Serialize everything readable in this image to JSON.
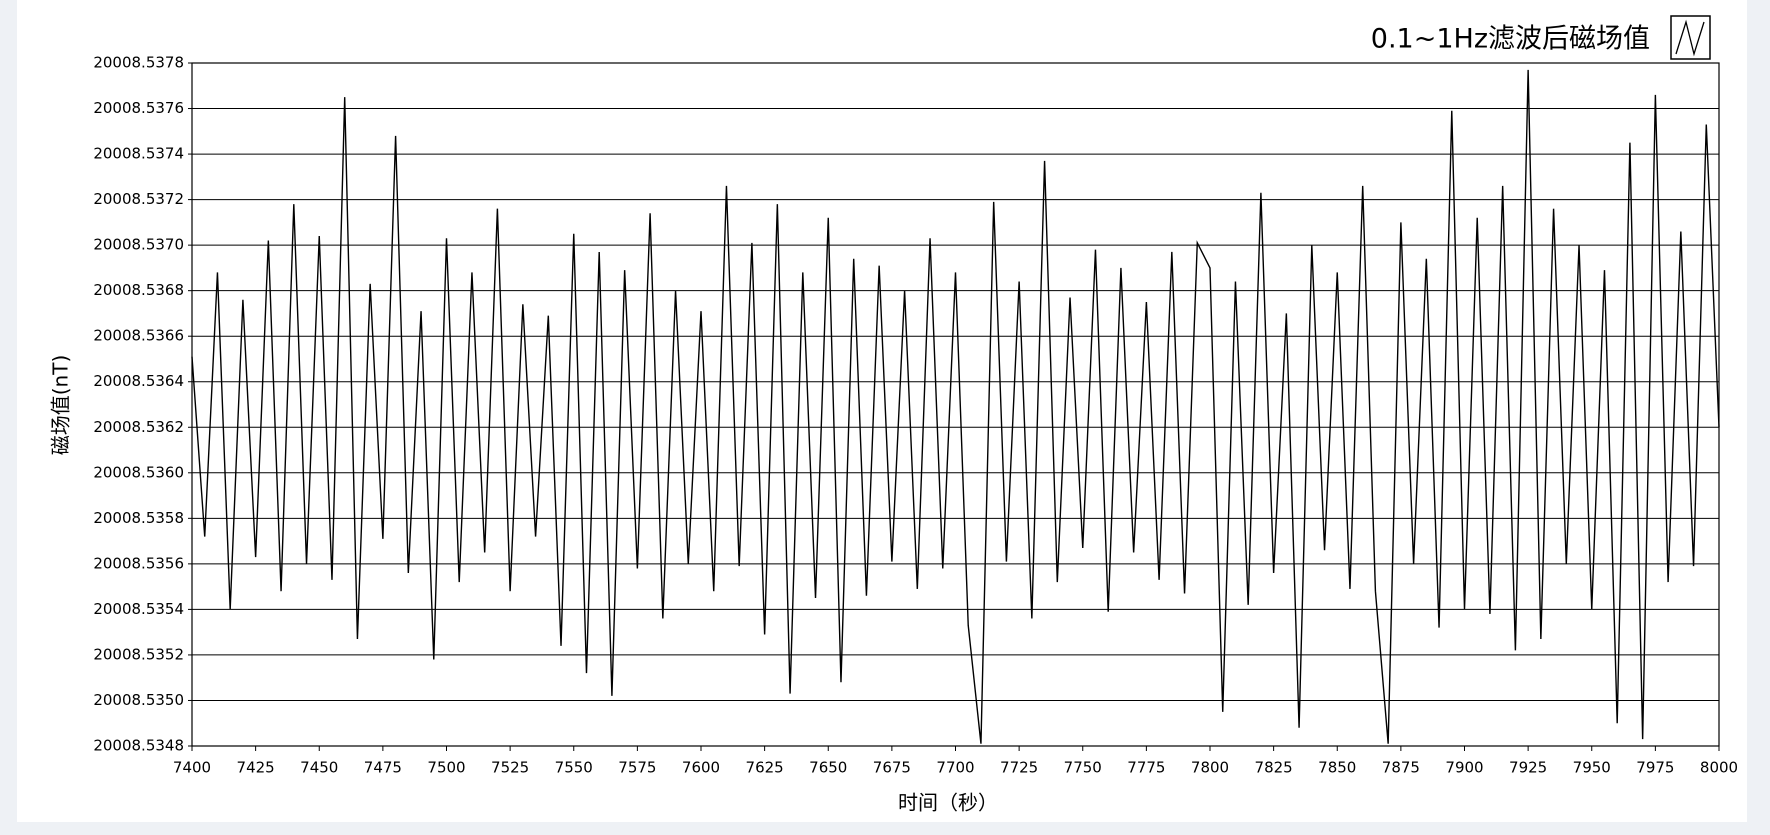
{
  "chart_data": {
    "type": "line",
    "xlabel": "时间（秒）",
    "ylabel": "磁场值(nT)",
    "series": [
      {
        "name": "0.1~1Hz滤波后磁场值",
        "color": "#000000",
        "x": [
          7400,
          7405,
          7410,
          7415,
          7420,
          7425,
          7430,
          7435,
          7440,
          7445,
          7450,
          7455,
          7460,
          7465,
          7470,
          7475,
          7480,
          7485,
          7490,
          7495,
          7500,
          7505,
          7510,
          7515,
          7520,
          7525,
          7530,
          7535,
          7540,
          7545,
          7550,
          7555,
          7560,
          7565,
          7570,
          7575,
          7580,
          7585,
          7590,
          7595,
          7600,
          7605,
          7610,
          7615,
          7620,
          7625,
          7630,
          7635,
          7640,
          7645,
          7650,
          7655,
          7660,
          7665,
          7670,
          7675,
          7680,
          7685,
          7690,
          7695,
          7700,
          7705,
          7710,
          7715,
          7720,
          7725,
          7730,
          7735,
          7740,
          7745,
          7750,
          7755,
          7760,
          7765,
          7770,
          7775,
          7780,
          7785,
          7790,
          7795,
          7800,
          7805,
          7810,
          7815,
          7820,
          7825,
          7830,
          7835,
          7840,
          7845,
          7850,
          7855,
          7860,
          7865,
          7870,
          7875,
          7880,
          7885,
          7890,
          7895,
          7900,
          7905,
          7910,
          7915,
          7920,
          7925,
          7930,
          7935,
          7940,
          7945,
          7950,
          7955,
          7960,
          7965,
          7970,
          7975,
          7980,
          7985,
          7990,
          7995,
          8000
        ],
        "values": [
          20008.53651,
          20008.53572,
          20008.53688,
          20008.5354,
          20008.53676,
          20008.53563,
          20008.53702,
          20008.53548,
          20008.53718,
          20008.5356,
          20008.53704,
          20008.53553,
          20008.53765,
          20008.53527,
          20008.53683,
          20008.53571,
          20008.53748,
          20008.53556,
          20008.53671,
          20008.53518,
          20008.53703,
          20008.53552,
          20008.53688,
          20008.53565,
          20008.53716,
          20008.53548,
          20008.53674,
          20008.53572,
          20008.53669,
          20008.53524,
          20008.53705,
          20008.53512,
          20008.53697,
          20008.53502,
          20008.53689,
          20008.53558,
          20008.53714,
          20008.53536,
          20008.5368,
          20008.5356,
          20008.53671,
          20008.53548,
          20008.53726,
          20008.53559,
          20008.53701,
          20008.53529,
          20008.53718,
          20008.53503,
          20008.53688,
          20008.53545,
          20008.53712,
          20008.53508,
          20008.53694,
          20008.53546,
          20008.53691,
          20008.53561,
          20008.5368,
          20008.53549,
          20008.53703,
          20008.53558,
          20008.53688,
          20008.53533,
          20008.53481,
          20008.53719,
          20008.53561,
          20008.53684,
          20008.53536,
          20008.53737,
          20008.53552,
          20008.53677,
          20008.53567,
          20008.53698,
          20008.53539,
          20008.5369,
          20008.53565,
          20008.53675,
          20008.53553,
          20008.53697,
          20008.53547,
          20008.53701,
          20008.5369,
          20008.53495,
          20008.53684,
          20008.53542,
          20008.53723,
          20008.53556,
          20008.5367,
          20008.53488,
          20008.537,
          20008.53566,
          20008.53688,
          20008.53549,
          20008.53726,
          20008.53548,
          20008.53481,
          20008.5371,
          20008.5356,
          20008.53694,
          20008.53532,
          20008.53759,
          20008.5354,
          20008.53712,
          20008.53538,
          20008.53726,
          20008.53522,
          20008.53777,
          20008.53527,
          20008.53716,
          20008.5356,
          20008.537,
          20008.5354,
          20008.53689,
          20008.5349,
          20008.53745,
          20008.53483,
          20008.53766,
          20008.53552,
          20008.53706,
          20008.53559,
          20008.53753,
          20008.5362
        ]
      }
    ],
    "xlim": [
      7400,
      8000
    ],
    "xticks": [
      7400,
      7425,
      7450,
      7475,
      7500,
      7525,
      7550,
      7575,
      7600,
      7625,
      7650,
      7675,
      7700,
      7725,
      7750,
      7775,
      7800,
      7825,
      7850,
      7875,
      7900,
      7925,
      7950,
      7975,
      8000
    ],
    "ylim": [
      20008.5348,
      20008.5378
    ],
    "yticks": [
      20008.5348,
      {
        "value": 20008.535,
        "label": "20008.5350"
      },
      20008.5352,
      20008.5354,
      20008.5356,
      20008.5358,
      {
        "value": 20008.536,
        "label": "20008.5360"
      },
      20008.5362,
      20008.5364,
      20008.5366,
      20008.5368,
      {
        "value": 20008.537,
        "label": "20008.5370"
      },
      20008.5372,
      20008.5374,
      20008.5376,
      20008.5378
    ],
    "grid": true
  }
}
